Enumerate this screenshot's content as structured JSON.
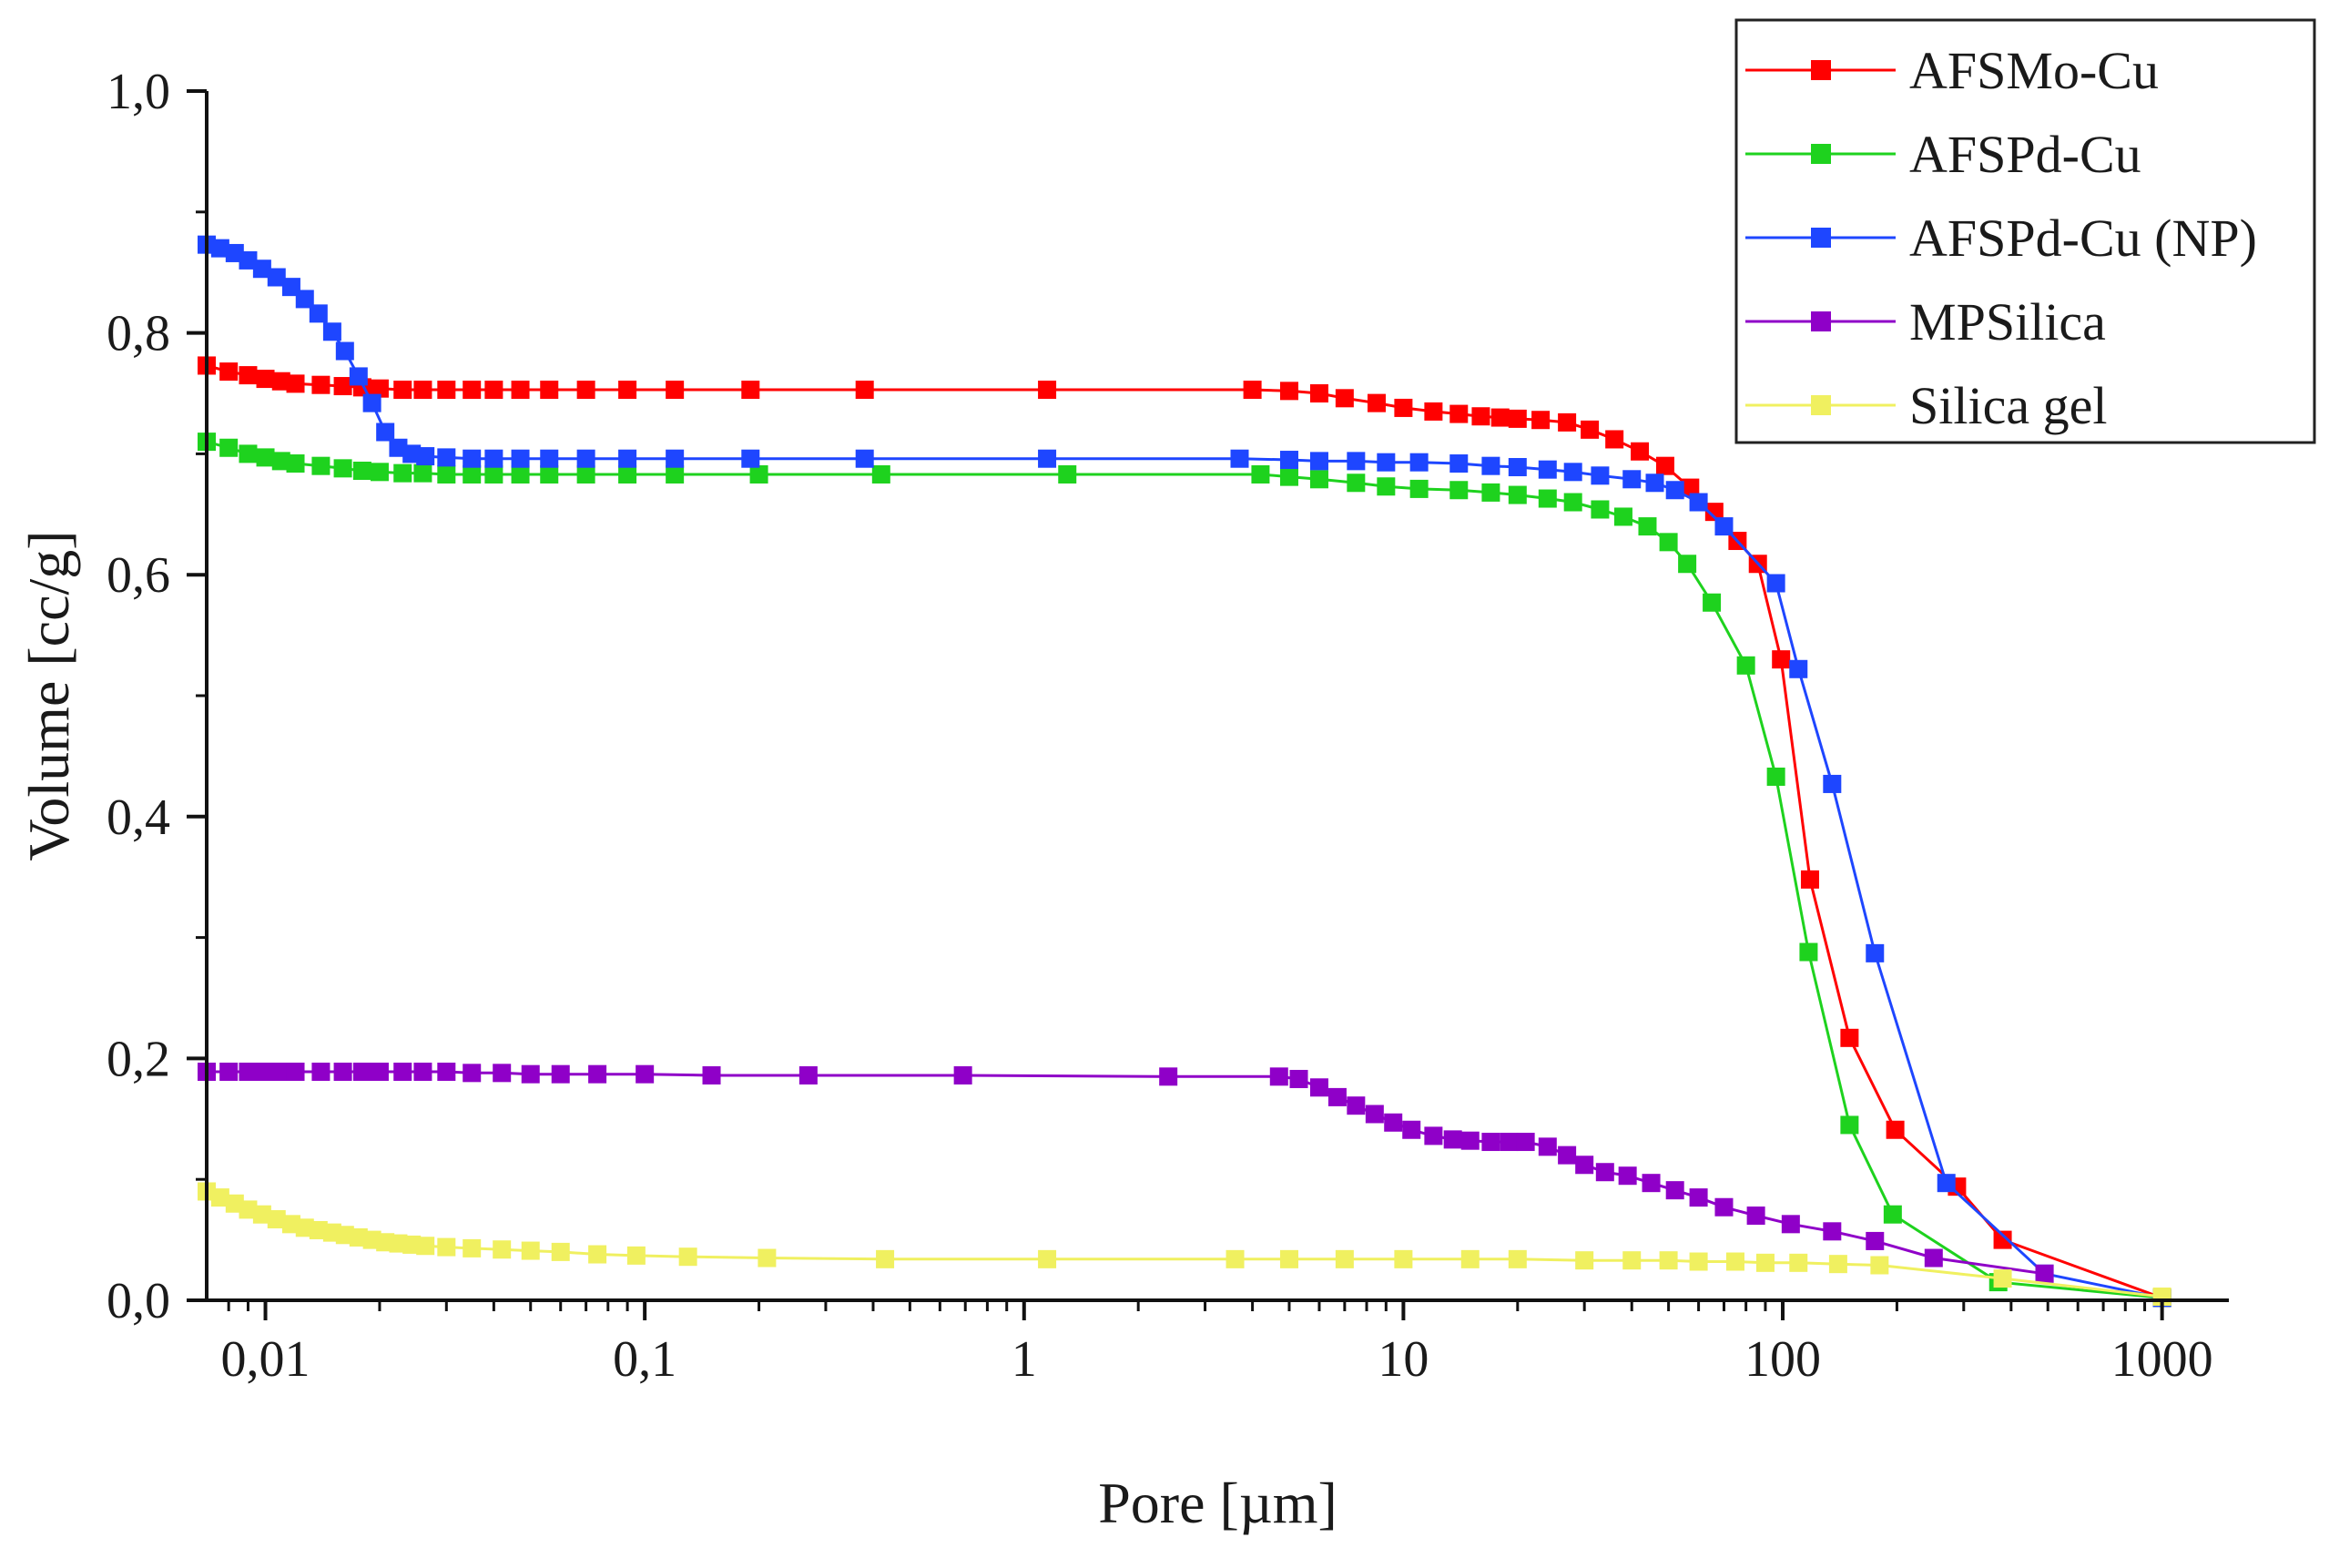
{
  "chart_data": {
    "type": "line",
    "title": "",
    "xlabel": "Pore [µm]",
    "ylabel": "Volume [cc/g]",
    "x_scale": "log",
    "xlim": [
      0.007,
      1500
    ],
    "ylim": [
      0,
      1.0
    ],
    "x_ticks": [
      {
        "value": 0.01,
        "label": "0,01"
      },
      {
        "value": 0.1,
        "label": "0,1"
      },
      {
        "value": 1,
        "label": "1"
      },
      {
        "value": 10,
        "label": "10"
      },
      {
        "value": 100,
        "label": "100"
      },
      {
        "value": 1000,
        "label": "1000"
      }
    ],
    "y_ticks": [
      {
        "value": 0.0,
        "label": "0,0"
      },
      {
        "value": 0.2,
        "label": "0,2"
      },
      {
        "value": 0.4,
        "label": "0,4"
      },
      {
        "value": 0.6,
        "label": "0,6"
      },
      {
        "value": 0.8,
        "label": "0,8"
      },
      {
        "value": 1.0,
        "label": "1,0"
      }
    ],
    "grid": false,
    "legend_position": "top-right",
    "series": [
      {
        "name": "AFSMo-Cu",
        "color": "#ff0000",
        "points": [
          [
            0.007,
            0.773
          ],
          [
            0.008,
            0.768
          ],
          [
            0.009,
            0.765
          ],
          [
            0.01,
            0.762
          ],
          [
            0.011,
            0.76
          ],
          [
            0.012,
            0.758
          ],
          [
            0.014,
            0.757
          ],
          [
            0.016,
            0.756
          ],
          [
            0.018,
            0.755
          ],
          [
            0.02,
            0.754
          ],
          [
            0.023,
            0.753
          ],
          [
            0.026,
            0.753
          ],
          [
            0.03,
            0.753
          ],
          [
            0.035,
            0.753
          ],
          [
            0.04,
            0.753
          ],
          [
            0.047,
            0.753
          ],
          [
            0.056,
            0.753
          ],
          [
            0.07,
            0.753
          ],
          [
            0.09,
            0.753
          ],
          [
            0.12,
            0.753
          ],
          [
            0.19,
            0.753
          ],
          [
            0.38,
            0.753
          ],
          [
            1.15,
            0.753
          ],
          [
            4.0,
            0.753
          ],
          [
            5.0,
            0.752
          ],
          [
            6.0,
            0.75
          ],
          [
            7.0,
            0.746
          ],
          [
            8.5,
            0.742
          ],
          [
            10,
            0.738
          ],
          [
            12,
            0.735
          ],
          [
            14,
            0.733
          ],
          [
            16,
            0.731
          ],
          [
            18,
            0.73
          ],
          [
            20,
            0.729
          ],
          [
            23,
            0.728
          ],
          [
            27,
            0.726
          ],
          [
            31,
            0.72
          ],
          [
            36,
            0.712
          ],
          [
            42,
            0.702
          ],
          [
            49,
            0.69
          ],
          [
            57,
            0.672
          ],
          [
            66,
            0.652
          ],
          [
            76,
            0.628
          ],
          [
            86,
            0.609
          ],
          [
            99,
            0.53
          ],
          [
            118,
            0.348
          ],
          [
            150,
            0.217
          ],
          [
            198,
            0.141
          ],
          [
            288,
            0.094
          ],
          [
            380,
            0.05
          ],
          [
            1000,
            0.002
          ]
        ]
      },
      {
        "name": "AFSPd-Cu",
        "color": "#1ed21e",
        "points": [
          [
            0.007,
            0.71
          ],
          [
            0.008,
            0.705
          ],
          [
            0.009,
            0.7
          ],
          [
            0.01,
            0.697
          ],
          [
            0.011,
            0.694
          ],
          [
            0.012,
            0.692
          ],
          [
            0.014,
            0.69
          ],
          [
            0.016,
            0.688
          ],
          [
            0.018,
            0.686
          ],
          [
            0.02,
            0.685
          ],
          [
            0.023,
            0.684
          ],
          [
            0.026,
            0.684
          ],
          [
            0.03,
            0.683
          ],
          [
            0.035,
            0.683
          ],
          [
            0.04,
            0.683
          ],
          [
            0.047,
            0.683
          ],
          [
            0.056,
            0.683
          ],
          [
            0.07,
            0.683
          ],
          [
            0.09,
            0.683
          ],
          [
            0.12,
            0.683
          ],
          [
            0.2,
            0.683
          ],
          [
            0.42,
            0.683
          ],
          [
            1.3,
            0.683
          ],
          [
            4.2,
            0.683
          ],
          [
            5.0,
            0.681
          ],
          [
            6.0,
            0.679
          ],
          [
            7.5,
            0.676
          ],
          [
            9.0,
            0.673
          ],
          [
            11,
            0.671
          ],
          [
            14,
            0.67
          ],
          [
            17,
            0.668
          ],
          [
            20,
            0.666
          ],
          [
            24,
            0.663
          ],
          [
            28,
            0.66
          ],
          [
            33,
            0.654
          ],
          [
            38,
            0.648
          ],
          [
            44,
            0.64
          ],
          [
            50,
            0.627
          ],
          [
            56,
            0.609
          ],
          [
            65,
            0.577
          ],
          [
            80,
            0.525
          ],
          [
            96,
            0.433
          ],
          [
            117,
            0.288
          ],
          [
            150,
            0.145
          ],
          [
            195,
            0.071
          ],
          [
            370,
            0.015
          ],
          [
            1000,
            0.002
          ]
        ]
      },
      {
        "name": "AFSPd-Cu (NP)",
        "color": "#1e46ff",
        "points": [
          [
            0.007,
            0.873
          ],
          [
            0.0076,
            0.87
          ],
          [
            0.0083,
            0.866
          ],
          [
            0.009,
            0.86
          ],
          [
            0.0098,
            0.853
          ],
          [
            0.0107,
            0.846
          ],
          [
            0.0117,
            0.838
          ],
          [
            0.0127,
            0.828
          ],
          [
            0.0138,
            0.816
          ],
          [
            0.015,
            0.801
          ],
          [
            0.0162,
            0.785
          ],
          [
            0.0176,
            0.764
          ],
          [
            0.0191,
            0.742
          ],
          [
            0.0207,
            0.718
          ],
          [
            0.0224,
            0.705
          ],
          [
            0.0243,
            0.7
          ],
          [
            0.0264,
            0.698
          ],
          [
            0.03,
            0.697
          ],
          [
            0.035,
            0.696
          ],
          [
            0.04,
            0.696
          ],
          [
            0.047,
            0.696
          ],
          [
            0.056,
            0.696
          ],
          [
            0.07,
            0.696
          ],
          [
            0.09,
            0.696
          ],
          [
            0.12,
            0.696
          ],
          [
            0.19,
            0.696
          ],
          [
            0.38,
            0.696
          ],
          [
            1.15,
            0.696
          ],
          [
            3.7,
            0.696
          ],
          [
            5.0,
            0.695
          ],
          [
            6.0,
            0.694
          ],
          [
            7.5,
            0.694
          ],
          [
            9.0,
            0.693
          ],
          [
            11,
            0.693
          ],
          [
            14,
            0.692
          ],
          [
            17,
            0.69
          ],
          [
            20,
            0.689
          ],
          [
            24,
            0.687
          ],
          [
            28,
            0.685
          ],
          [
            33,
            0.682
          ],
          [
            40,
            0.679
          ],
          [
            46,
            0.676
          ],
          [
            52,
            0.67
          ],
          [
            60,
            0.66
          ],
          [
            70,
            0.64
          ],
          [
            96,
            0.593
          ],
          [
            110,
            0.522
          ],
          [
            135,
            0.427
          ],
          [
            175,
            0.287
          ],
          [
            270,
            0.097
          ],
          [
            490,
            0.022
          ],
          [
            1000,
            0.002
          ]
        ]
      },
      {
        "name": "MPSilica",
        "color": "#8f00c8",
        "points": [
          [
            0.007,
            0.189
          ],
          [
            0.008,
            0.189
          ],
          [
            0.009,
            0.189
          ],
          [
            0.01,
            0.189
          ],
          [
            0.011,
            0.189
          ],
          [
            0.012,
            0.189
          ],
          [
            0.014,
            0.189
          ],
          [
            0.016,
            0.189
          ],
          [
            0.018,
            0.189
          ],
          [
            0.02,
            0.189
          ],
          [
            0.023,
            0.189
          ],
          [
            0.026,
            0.189
          ],
          [
            0.03,
            0.189
          ],
          [
            0.035,
            0.188
          ],
          [
            0.042,
            0.188
          ],
          [
            0.05,
            0.187
          ],
          [
            0.06,
            0.187
          ],
          [
            0.075,
            0.187
          ],
          [
            0.1,
            0.187
          ],
          [
            0.15,
            0.186
          ],
          [
            0.27,
            0.186
          ],
          [
            0.69,
            0.186
          ],
          [
            2.4,
            0.185
          ],
          [
            4.7,
            0.185
          ],
          [
            5.3,
            0.183
          ],
          [
            6.0,
            0.176
          ],
          [
            6.7,
            0.168
          ],
          [
            7.5,
            0.161
          ],
          [
            8.4,
            0.154
          ],
          [
            9.4,
            0.147
          ],
          [
            10.5,
            0.141
          ],
          [
            12,
            0.136
          ],
          [
            13.5,
            0.133
          ],
          [
            15,
            0.132
          ],
          [
            17,
            0.131
          ],
          [
            19,
            0.131
          ],
          [
            21,
            0.131
          ],
          [
            24,
            0.127
          ],
          [
            27,
            0.12
          ],
          [
            30,
            0.112
          ],
          [
            34,
            0.106
          ],
          [
            39,
            0.103
          ],
          [
            45,
            0.097
          ],
          [
            52,
            0.091
          ],
          [
            60,
            0.085
          ],
          [
            70,
            0.077
          ],
          [
            85,
            0.07
          ],
          [
            105,
            0.063
          ],
          [
            135,
            0.057
          ],
          [
            175,
            0.049
          ],
          [
            250,
            0.035
          ],
          [
            490,
            0.022
          ]
        ]
      },
      {
        "name": "Silica gel",
        "color": "#f0f060",
        "points": [
          [
            0.007,
            0.09
          ],
          [
            0.0076,
            0.085
          ],
          [
            0.0083,
            0.08
          ],
          [
            0.009,
            0.075
          ],
          [
            0.0098,
            0.071
          ],
          [
            0.0107,
            0.067
          ],
          [
            0.0117,
            0.063
          ],
          [
            0.0127,
            0.06
          ],
          [
            0.0138,
            0.058
          ],
          [
            0.015,
            0.056
          ],
          [
            0.0162,
            0.054
          ],
          [
            0.0176,
            0.052
          ],
          [
            0.0191,
            0.05
          ],
          [
            0.0207,
            0.048
          ],
          [
            0.0224,
            0.047
          ],
          [
            0.0243,
            0.046
          ],
          [
            0.0264,
            0.045
          ],
          [
            0.03,
            0.044
          ],
          [
            0.035,
            0.043
          ],
          [
            0.042,
            0.042
          ],
          [
            0.05,
            0.041
          ],
          [
            0.06,
            0.04
          ],
          [
            0.075,
            0.038
          ],
          [
            0.095,
            0.037
          ],
          [
            0.13,
            0.036
          ],
          [
            0.21,
            0.035
          ],
          [
            0.43,
            0.034
          ],
          [
            1.15,
            0.034
          ],
          [
            3.6,
            0.034
          ],
          [
            5,
            0.034
          ],
          [
            7,
            0.034
          ],
          [
            10,
            0.034
          ],
          [
            15,
            0.034
          ],
          [
            20,
            0.034
          ],
          [
            30,
            0.033
          ],
          [
            40,
            0.033
          ],
          [
            50,
            0.033
          ],
          [
            60,
            0.032
          ],
          [
            75,
            0.032
          ],
          [
            90,
            0.031
          ],
          [
            110,
            0.031
          ],
          [
            140,
            0.03
          ],
          [
            180,
            0.029
          ],
          [
            380,
            0.018
          ],
          [
            1000,
            0.003
          ]
        ]
      }
    ]
  }
}
